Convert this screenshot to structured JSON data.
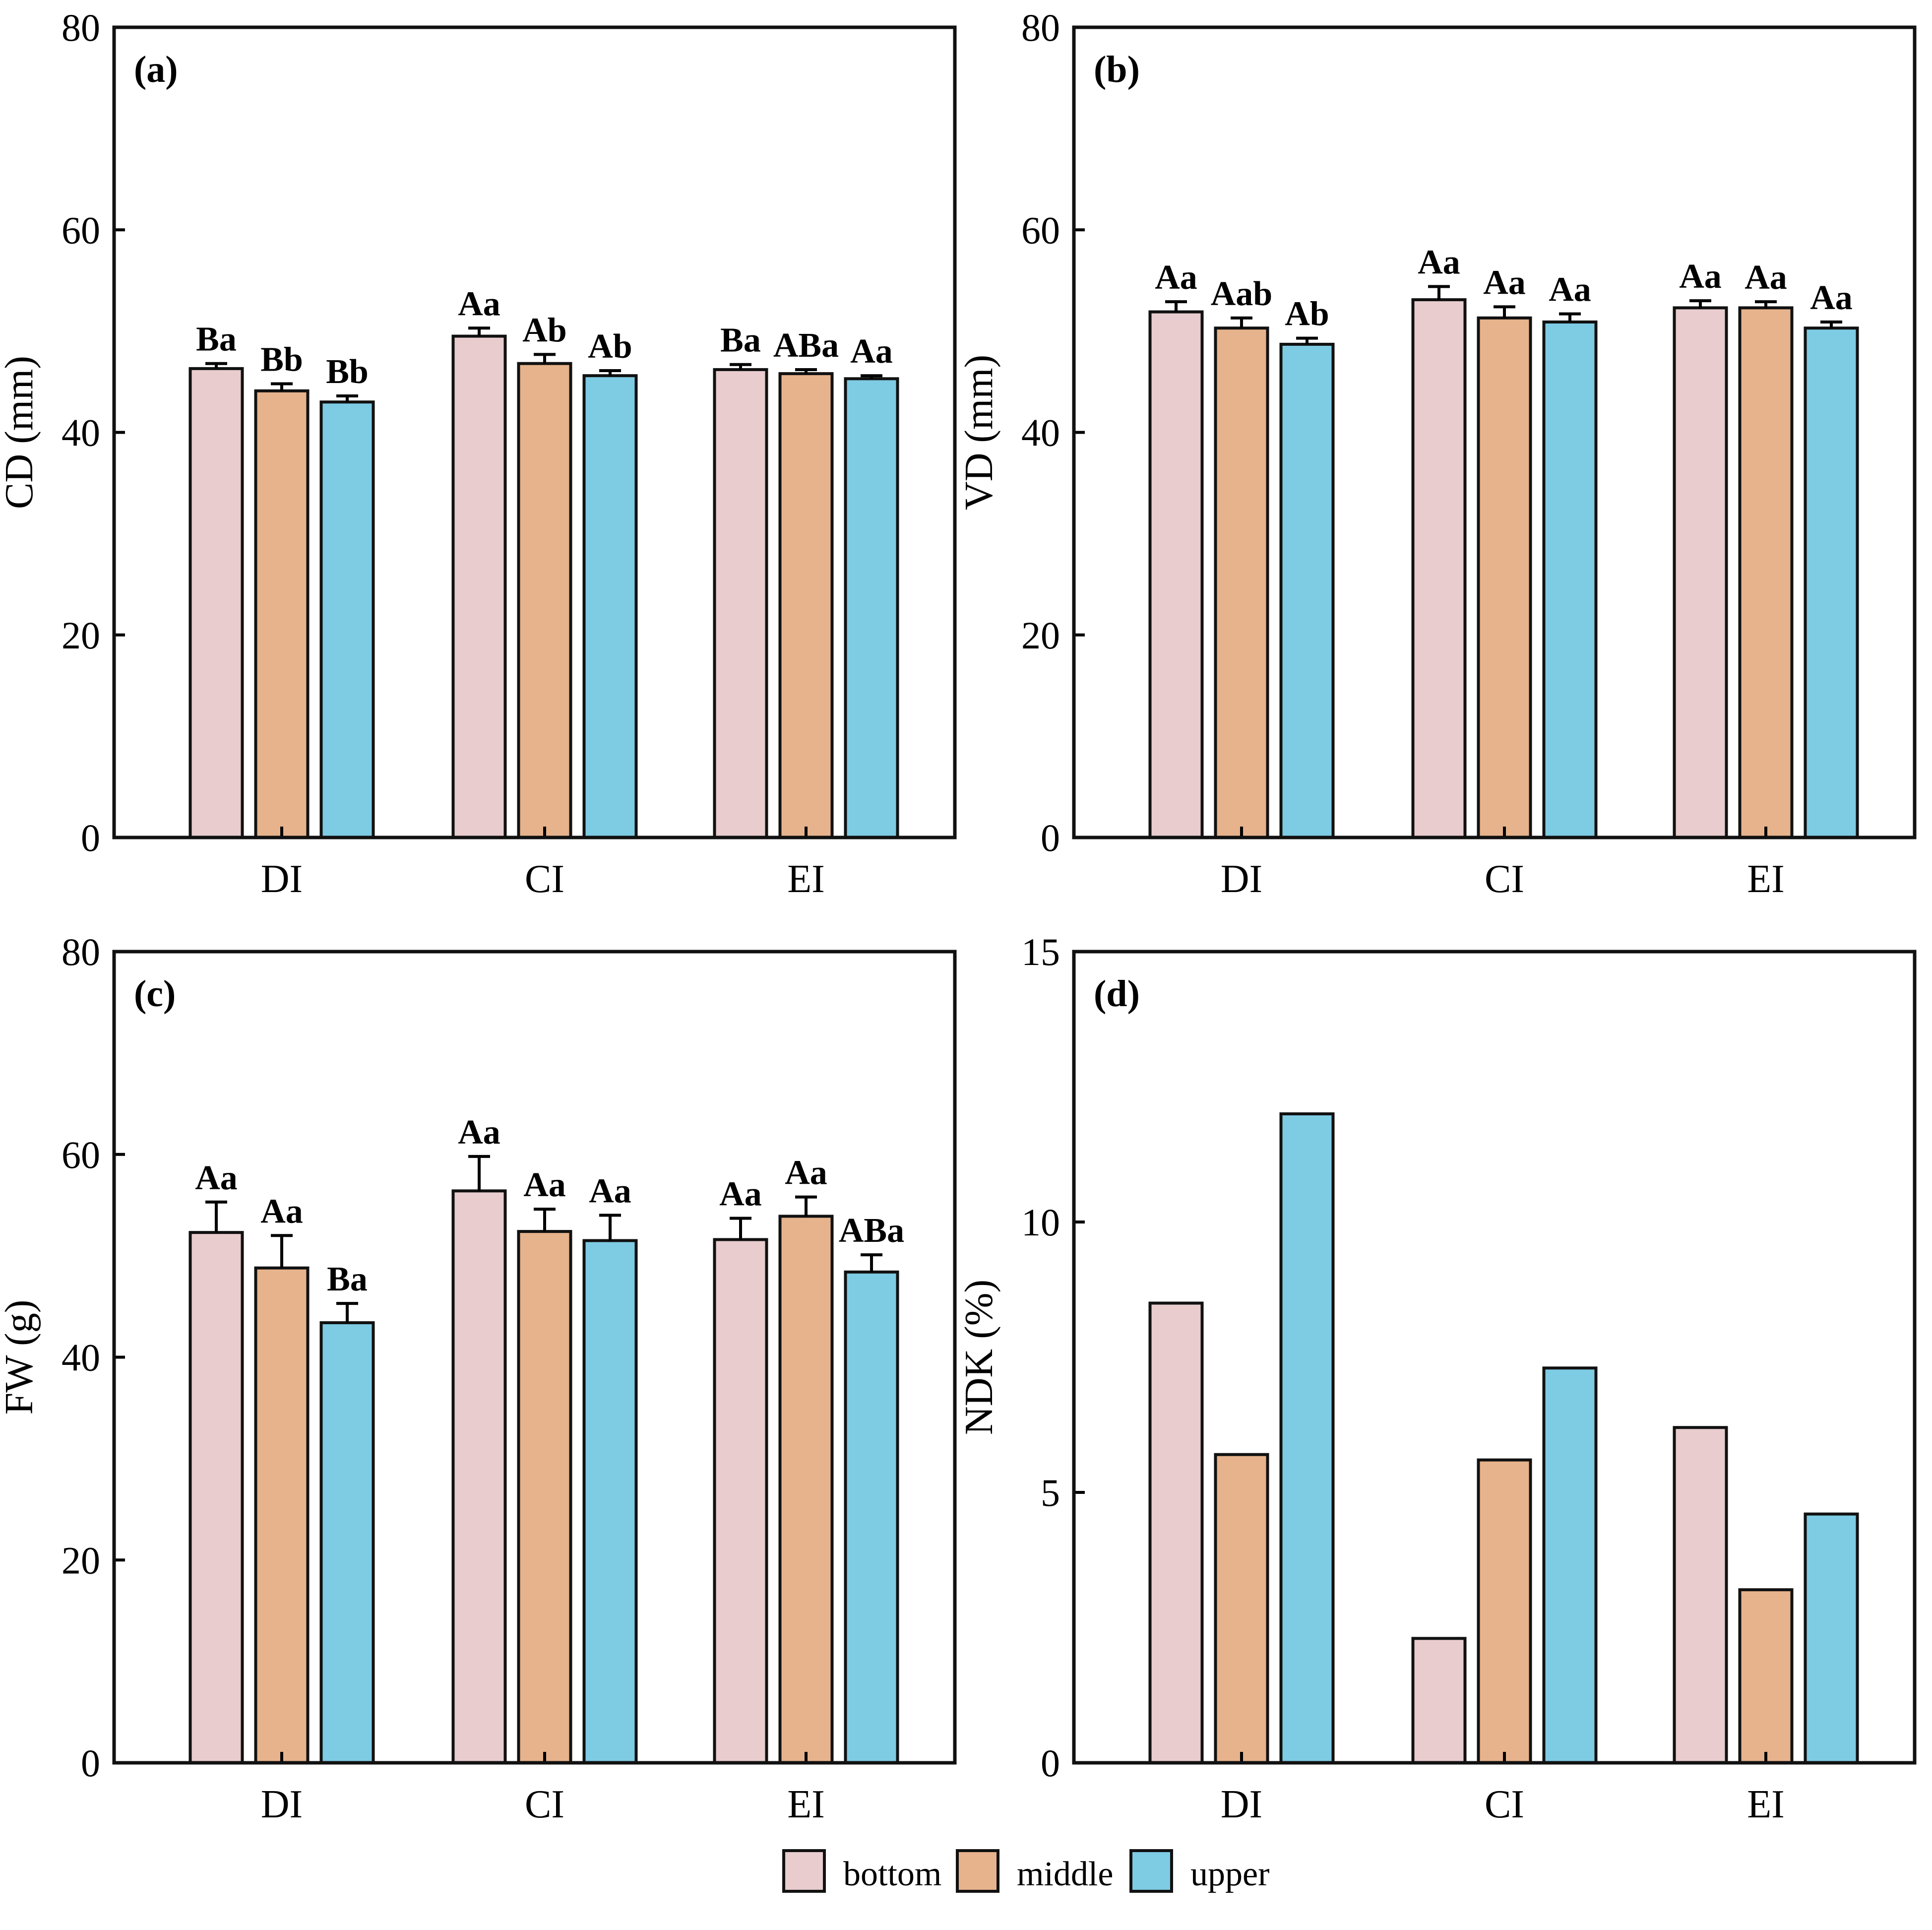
{
  "colors": {
    "bottom": "#E8CCCE",
    "middle": "#E7B38C",
    "upper": "#7ECBE4"
  },
  "legend": [
    {
      "key": "bottom",
      "label": "bottom"
    },
    {
      "key": "middle",
      "label": "middle"
    },
    {
      "key": "upper",
      "label": "upper"
    }
  ],
  "chart_data": [
    {
      "type": "bar",
      "panel_label": "(a)",
      "ylabel": "CD (mm)",
      "ylim": [
        0,
        80
      ],
      "yticks": [
        "0",
        "20",
        "40",
        "60",
        "80"
      ],
      "categories": [
        "DI",
        "CI",
        "EI"
      ],
      "series": [
        {
          "name": "bottom",
          "values": [
            46.3,
            49.5,
            46.2
          ],
          "errors": [
            0.5,
            0.8,
            0.5
          ],
          "labels": [
            "Ba",
            "Aa",
            "Ba"
          ]
        },
        {
          "name": "middle",
          "values": [
            44.1,
            46.8,
            45.8
          ],
          "errors": [
            0.7,
            0.9,
            0.4
          ],
          "labels": [
            "Bb",
            "Ab",
            "ABa"
          ]
        },
        {
          "name": "upper",
          "values": [
            43.0,
            45.6,
            45.3
          ],
          "errors": [
            0.6,
            0.5,
            0.3
          ],
          "labels": [
            "Bb",
            "Ab",
            "Aa"
          ]
        }
      ]
    },
    {
      "type": "bar",
      "panel_label": "(b)",
      "ylabel": "VD (mm)",
      "ylim": [
        0,
        80
      ],
      "yticks": [
        "0",
        "20",
        "40",
        "60",
        "80"
      ],
      "categories": [
        "DI",
        "CI",
        "EI"
      ],
      "series": [
        {
          "name": "bottom",
          "values": [
            51.9,
            53.1,
            52.3
          ],
          "errors": [
            1.0,
            1.3,
            0.7
          ],
          "labels": [
            "Aa",
            "Aa",
            "Aa"
          ]
        },
        {
          "name": "middle",
          "values": [
            50.3,
            51.3,
            52.3
          ],
          "errors": [
            1.0,
            1.1,
            0.6
          ],
          "labels": [
            "Aab",
            "Aa",
            "Aa"
          ]
        },
        {
          "name": "upper",
          "values": [
            48.7,
            50.9,
            50.3
          ],
          "errors": [
            0.6,
            0.8,
            0.6
          ],
          "labels": [
            "Ab",
            "Aa",
            "Aa"
          ]
        }
      ]
    },
    {
      "type": "bar",
      "panel_label": "(c)",
      "ylabel": "FW (g)",
      "ylim": [
        0,
        80
      ],
      "yticks": [
        "0",
        "20",
        "40",
        "60",
        "80"
      ],
      "categories": [
        "DI",
        "CI",
        "EI"
      ],
      "series": [
        {
          "name": "bottom",
          "values": [
            52.3,
            56.4,
            51.6
          ],
          "errors": [
            3.0,
            3.4,
            2.1
          ],
          "labels": [
            "Aa",
            "Aa",
            "Aa"
          ]
        },
        {
          "name": "middle",
          "values": [
            48.8,
            52.4,
            53.9
          ],
          "errors": [
            3.2,
            2.2,
            1.9
          ],
          "labels": [
            "Aa",
            "Aa",
            "Aa"
          ]
        },
        {
          "name": "upper",
          "values": [
            43.4,
            51.5,
            48.4
          ],
          "errors": [
            1.9,
            2.5,
            1.7
          ],
          "labels": [
            "Ba",
            "Aa",
            "ABa"
          ]
        }
      ]
    },
    {
      "type": "bar",
      "panel_label": "(d)",
      "ylabel": "NDK (%)",
      "ylim": [
        0,
        15
      ],
      "yticks": [
        "0",
        "5",
        "10",
        "15"
      ],
      "categories": [
        "DI",
        "CI",
        "EI"
      ],
      "series": [
        {
          "name": "bottom",
          "values": [
            8.5,
            2.3,
            6.2
          ]
        },
        {
          "name": "middle",
          "values": [
            5.7,
            5.6,
            3.2
          ]
        },
        {
          "name": "upper",
          "values": [
            12.0,
            7.3,
            4.6
          ]
        }
      ]
    }
  ]
}
